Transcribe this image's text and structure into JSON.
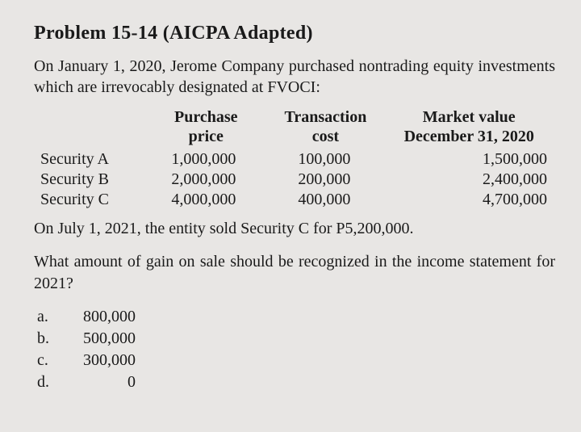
{
  "heading": "Problem 15-14 (AICPA Adapted)",
  "intro": "On January 1, 2020, Jerome Company purchased nontrading equity investments which are irrevocably designated at FVOCI:",
  "table": {
    "columns": [
      {
        "line1": "",
        "line2": ""
      },
      {
        "line1": "Purchase",
        "line2": "price"
      },
      {
        "line1": "Transaction",
        "line2": "cost"
      },
      {
        "line1": "Market value",
        "line2": "December 31, 2020"
      }
    ],
    "rows": [
      {
        "label": "Security A",
        "purchase": "1,000,000",
        "transaction": "100,000",
        "market": "1,500,000"
      },
      {
        "label": "Security B",
        "purchase": "2,000,000",
        "transaction": "200,000",
        "market": "2,400,000"
      },
      {
        "label": "Security C",
        "purchase": "4,000,000",
        "transaction": "400,000",
        "market": "4,700,000"
      }
    ]
  },
  "line_after_table": "On July 1, 2021, the entity sold Security C for P5,200,000.",
  "question": "What amount of gain on sale should be recognized in the income statement for 2021?",
  "options": [
    {
      "letter": "a.",
      "value": "800,000"
    },
    {
      "letter": "b.",
      "value": "500,000"
    },
    {
      "letter": "c.",
      "value": "300,000"
    },
    {
      "letter": "d.",
      "value": "0"
    }
  ],
  "style": {
    "background_color": "#e8e6e4",
    "text_color": "#1a1a1a",
    "font_family": "Times New Roman, serif",
    "heading_fontsize": 24,
    "body_fontsize": 20
  }
}
